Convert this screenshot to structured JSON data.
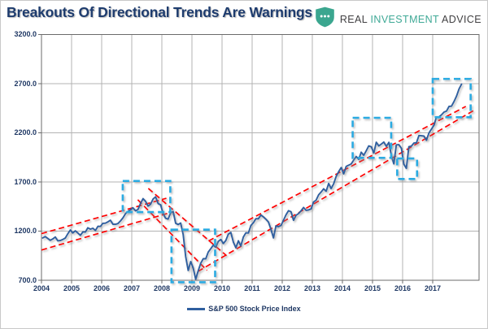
{
  "header": {
    "title": "Breakouts Of Directional Trends Are Warnings",
    "logo": {
      "brand_real": "REAL",
      "brand_investment": "INVESTMENT",
      "brand_advice": "ADVICE",
      "shield_icon": "shield-with-ellipsis"
    }
  },
  "legend": {
    "label": "S&P 500 Stock Price Index"
  },
  "colors": {
    "price": "#2f5f9f",
    "trend": "#fe0000",
    "highlight": "#29abe2",
    "grid": "#b3b3b3",
    "axis": "#6b6b6b",
    "title_navy": "#1e3c6e",
    "tick_navy": "#1f3864",
    "brand_teal": "#3fa996",
    "brand_dark": "#414042",
    "shield_teal": "#3ba68f"
  },
  "chart_data": {
    "type": "line",
    "title": "Breakouts Of Directional Trends Are Warnings",
    "xlabel": "",
    "ylabel": "",
    "grid": true,
    "legend_position": "bottom",
    "x_range": [
      2004.0,
      2018.54
    ],
    "y_range": [
      700,
      3200
    ],
    "x_ticks": [
      2004,
      2005,
      2006,
      2007,
      2008,
      2009,
      2010,
      2011,
      2012,
      2013,
      2014,
      2015,
      2016,
      2017
    ],
    "y_ticks": [
      3200,
      2700,
      2200,
      1700,
      1200,
      700
    ],
    "series": [
      {
        "name": "S&P 500 Stock Price Index",
        "start_x": 2004.0417,
        "step_x": 0.083333,
        "values": [
          1131,
          1145,
          1126,
          1107,
          1121,
          1141,
          1102,
          1104,
          1115,
          1130,
          1174,
          1212,
          1181,
          1204,
          1181,
          1157,
          1192,
          1191,
          1234,
          1220,
          1229,
          1207,
          1249,
          1248,
          1280,
          1281,
          1295,
          1311,
          1270,
          1270,
          1277,
          1304,
          1336,
          1378,
          1401,
          1418,
          1438,
          1407,
          1421,
          1482,
          1531,
          1503,
          1455,
          1474,
          1527,
          1549,
          1481,
          1468,
          1379,
          1331,
          1323,
          1386,
          1400,
          1280,
          1267,
          1283,
          1166,
          940,
          800,
          890,
          826,
          710,
          797,
          873,
          919,
          919,
          987,
          1021,
          1057,
          1036,
          1096,
          1115,
          1074,
          1104,
          1169,
          1187,
          1089,
          1031,
          1102,
          1049,
          1141,
          1183,
          1181,
          1258,
          1286,
          1327,
          1326,
          1364,
          1345,
          1321,
          1292,
          1219,
          1131,
          1253,
          1247,
          1258,
          1312,
          1366,
          1408,
          1398,
          1310,
          1362,
          1379,
          1407,
          1441,
          1412,
          1416,
          1426,
          1498,
          1515,
          1569,
          1598,
          1631,
          1606,
          1686,
          1633,
          1682,
          1757,
          1806,
          1848,
          1783,
          1859,
          1872,
          1884,
          1924,
          1960,
          1931,
          2003,
          1972,
          2018,
          2068,
          2059,
          1995,
          2105,
          2068,
          2086,
          2107,
          2063,
          2104,
          1972,
          1885,
          2079,
          2080,
          2044,
          1880,
          1840,
          2060,
          2065,
          2097,
          2099,
          2174,
          2171,
          2168,
          2126,
          2199,
          2239,
          2279,
          2364,
          2363,
          2384,
          2412,
          2423,
          2470,
          2472,
          2519,
          2575,
          2648,
          2696
        ]
      }
    ],
    "trendlines": [
      {
        "name": "bull-channel-2004-2008-upper",
        "x1": 2004.0,
        "v1": 1175,
        "x2": 2008.15,
        "v2": 1535
      },
      {
        "name": "bull-channel-2004-2008-lower",
        "x1": 2004.0,
        "v1": 1008,
        "x2": 2008.35,
        "v2": 1395
      },
      {
        "name": "bear-channel-2008-2009-upper",
        "x1": 2007.55,
        "v1": 1635,
        "x2": 2010.15,
        "v2": 950
      },
      {
        "name": "bear-channel-2008-2009-lower",
        "x1": 2007.2,
        "v1": 1520,
        "x2": 2009.5,
        "v2": 800
      },
      {
        "name": "bull-channel-2009-2018-upper",
        "x1": 2009.55,
        "v1": 1100,
        "x2": 2018.1,
        "v2": 2470
      },
      {
        "name": "bull-channel-2009-2018-lower",
        "x1": 2009.2,
        "v1": 790,
        "x2": 2018.4,
        "v2": 2435
      }
    ],
    "highlight_boxes": [
      {
        "name": "top-2007",
        "x1": 2006.7,
        "x2": 2008.28,
        "v1": 1394,
        "v2": 1711
      },
      {
        "name": "bottom-2009",
        "x1": 2008.32,
        "x2": 2009.77,
        "v1": 680,
        "v2": 1215
      },
      {
        "name": "consolidation-2015",
        "x1": 2014.34,
        "x2": 2015.62,
        "v1": 1946,
        "v2": 2354
      },
      {
        "name": "dip-2016",
        "x1": 2015.82,
        "x2": 2016.48,
        "v1": 1731,
        "v2": 1940
      },
      {
        "name": "breakout-2017",
        "x1": 2017.0,
        "x2": 2018.26,
        "v1": 2360,
        "v2": 2750
      }
    ]
  }
}
